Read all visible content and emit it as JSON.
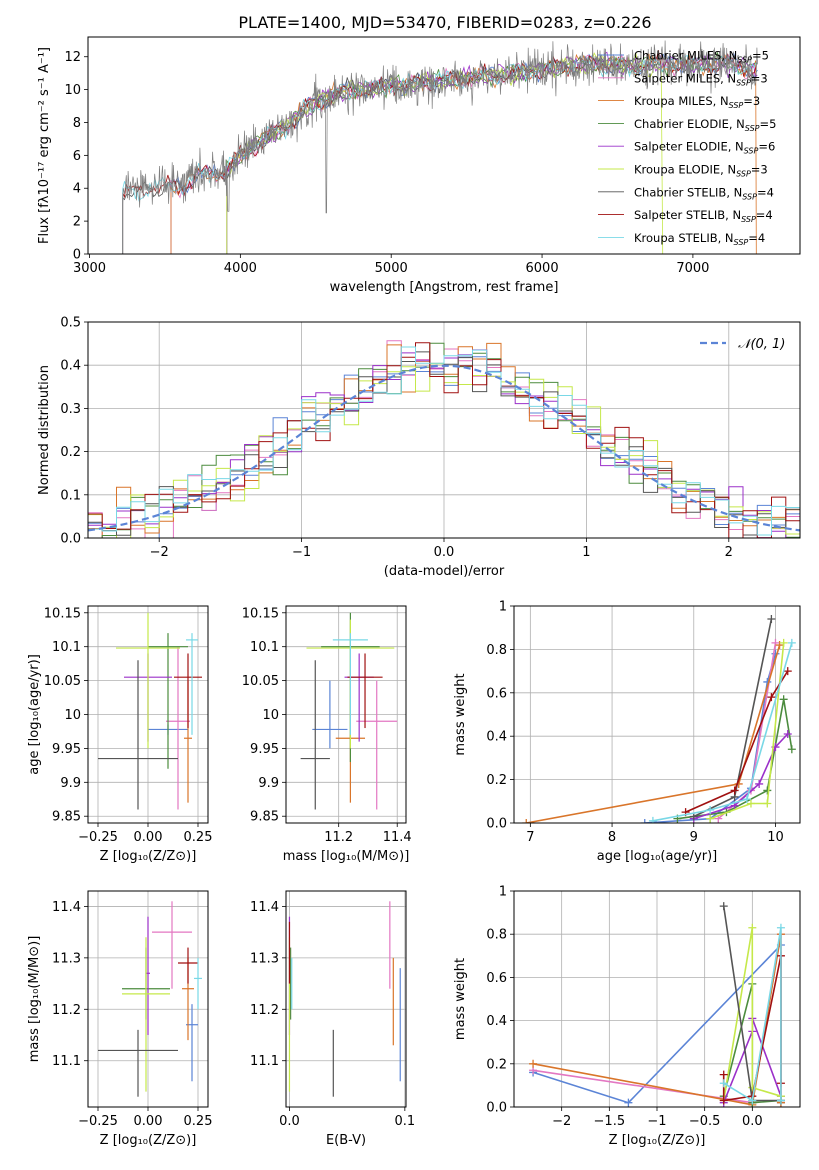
{
  "figure_title": "PLATE=1400, MJD=53470, FIBERID=0283, z=0.226",
  "colors": {
    "chabrier_miles": "#5b84d6",
    "salpeter_miles": "#e377c2",
    "kroupa_miles": "#d9752a",
    "chabrier_elodie": "#4c8c3e",
    "salpeter_elodie": "#9b30c9",
    "kroupa_elodie": "#c5e84a",
    "chabrier_stelib": "#555555",
    "salpeter_stelib": "#a01010",
    "kroupa_stelib": "#79d8e6",
    "normal_curve": "#5b84d6",
    "grid": "#b0b0b0"
  },
  "legend_entries": [
    {
      "name": "Chabrier MILES, N",
      "sub": "SSP",
      "tail": "=5",
      "color_key": "chabrier_miles"
    },
    {
      "name": "Salpeter MILES, N",
      "sub": "SSP",
      "tail": "=3",
      "color_key": "salpeter_miles"
    },
    {
      "name": "Kroupa MILES, N",
      "sub": "SSP",
      "tail": "=3",
      "color_key": "kroupa_miles"
    },
    {
      "name": "Chabrier ELODIE, N",
      "sub": "SSP",
      "tail": "=5",
      "color_key": "chabrier_elodie"
    },
    {
      "name": "Salpeter ELODIE, N",
      "sub": "SSP",
      "tail": "=6",
      "color_key": "salpeter_elodie"
    },
    {
      "name": "Kroupa ELODIE, N",
      "sub": "SSP",
      "tail": "=3",
      "color_key": "kroupa_elodie"
    },
    {
      "name": "Chabrier STELIB, N",
      "sub": "SSP",
      "tail": "=4",
      "color_key": "chabrier_stelib"
    },
    {
      "name": "Salpeter STELIB, N",
      "sub": "SSP",
      "tail": "=4",
      "color_key": "salpeter_stelib"
    },
    {
      "name": "Kroupa STELIB, N",
      "sub": "SSP",
      "tail": "=4",
      "color_key": "kroupa_stelib"
    }
  ],
  "chart_data": [
    {
      "id": "spectrum",
      "type": "line",
      "xlabel": "wavelength [Angstrom, rest frame]",
      "ylabel": "Flux [fλ10⁻¹⁷ erg cm⁻² s⁻¹ A⁻¹]",
      "xlim": [
        2990,
        7710
      ],
      "ylim": [
        0,
        13.2
      ],
      "xticks": [
        3000,
        4000,
        5000,
        6000,
        7000
      ],
      "yticks": [
        0,
        2,
        4,
        6,
        8,
        10,
        12
      ],
      "continuum": {
        "x": [
          3220,
          3300,
          3400,
          3500,
          3600,
          3700,
          3800,
          3900,
          4000,
          4100,
          4200,
          4300,
          4400,
          4500,
          4600,
          4700,
          4800,
          4900,
          5000,
          5100,
          5200,
          5400,
          5600,
          5800,
          6000,
          6200,
          6400,
          6600,
          6800,
          7000,
          7200,
          7400
        ],
        "y": [
          3.9,
          4.0,
          4.4,
          4.4,
          4.4,
          4.8,
          4.9,
          5.0,
          6.0,
          6.6,
          7.3,
          7.7,
          8.6,
          9.2,
          9.6,
          9.9,
          10.0,
          10.1,
          10.3,
          10.2,
          10.5,
          10.6,
          10.8,
          11.0,
          11.2,
          11.5,
          11.6,
          11.4,
          11.6,
          11.5,
          11.6,
          11.2
        ]
      },
      "model_drop_start": {
        "chabrier_miles": 3540,
        "salpeter_miles": 3540,
        "kroupa_miles": 3540,
        "chabrier_elodie": 3910,
        "salpeter_elodie": 3910,
        "kroupa_elodie": 3910,
        "chabrier_stelib": 3220,
        "salpeter_stelib": 3220,
        "kroupa_stelib": 3220
      },
      "model_drop_end": {
        "kroupa_elodie": 6800,
        "kroupa_miles": 7420
      }
    },
    {
      "id": "residuals",
      "type": "histogram",
      "xlabel": "(data-model)/error",
      "ylabel": "Normed distribution",
      "xlim": [
        -2.5,
        2.5
      ],
      "ylim": [
        0,
        0.5
      ],
      "xticks": [
        -2,
        -1,
        0,
        1,
        2
      ],
      "yticks": [
        0.0,
        0.1,
        0.2,
        0.3,
        0.4,
        0.5
      ],
      "bin_width": 0.1,
      "legend": "𝒩(0, 1)"
    },
    {
      "id": "age_vs_Z",
      "type": "errorbar",
      "xlabel": "Z [log₁₀(Z/Z⊙)]",
      "ylabel": "age  [log₁₀(age/yr)]",
      "xlim": [
        -0.3,
        0.3
      ],
      "ylim": [
        9.84,
        10.16
      ],
      "xticks": [
        -0.25,
        0.0,
        0.25
      ],
      "yticks": [
        9.85,
        9.9,
        9.95,
        10.0,
        10.05,
        10.1,
        10.15
      ],
      "points": [
        {
          "k": "chabrier_miles",
          "x": 0.1,
          "y": 9.978,
          "xe": 0.1,
          "yl": 9.97,
          "yh": 9.985
        },
        {
          "k": "salpeter_miles",
          "x": 0.15,
          "y": 9.99,
          "xe": 0.06,
          "yl": 9.86,
          "yh": 10.1
        },
        {
          "k": "kroupa_miles",
          "x": 0.2,
          "y": 9.965,
          "xe": 0.02,
          "yl": 9.87,
          "yh": 10.05
        },
        {
          "k": "chabrier_elodie",
          "x": 0.1,
          "y": 10.1,
          "xe": 0.1,
          "yl": 9.92,
          "yh": 10.12
        },
        {
          "k": "salpeter_elodie",
          "x": 0.0,
          "y": 10.055,
          "xe": 0.12,
          "yl": 9.96,
          "yh": 10.09
        },
        {
          "k": "kroupa_elodie",
          "x": 0.0,
          "y": 10.098,
          "xe": 0.16,
          "yl": 9.95,
          "yh": 10.15
        },
        {
          "k": "chabrier_stelib",
          "x": -0.05,
          "y": 9.935,
          "xe": 0.2,
          "yl": 9.86,
          "yh": 10.08
        },
        {
          "k": "salpeter_stelib",
          "x": 0.2,
          "y": 10.055,
          "xe": 0.07,
          "yl": 9.98,
          "yh": 10.09
        },
        {
          "k": "kroupa_stelib",
          "x": 0.22,
          "y": 10.11,
          "xe": 0.03,
          "yl": 9.97,
          "yh": 10.12
        }
      ]
    },
    {
      "id": "age_vs_mass",
      "type": "errorbar",
      "xlabel": "mass [log₁₀(M/M⊙)]",
      "ylabel": "",
      "xlim": [
        11.02,
        11.43
      ],
      "ylim": [
        9.84,
        10.16
      ],
      "xticks": [
        11.2,
        11.4
      ],
      "yticks": [
        9.85,
        9.9,
        9.95,
        10.0,
        10.05,
        10.1,
        10.15
      ],
      "points": [
        {
          "k": "chabrier_miles",
          "x": 11.17,
          "y": 9.978,
          "xe": 0.06,
          "yl": 9.95,
          "yh": 10.05
        },
        {
          "k": "salpeter_miles",
          "x": 11.33,
          "y": 9.99,
          "xe": 0.07,
          "yl": 9.86,
          "yh": 10.05
        },
        {
          "k": "kroupa_miles",
          "x": 11.24,
          "y": 9.965,
          "xe": 0.05,
          "yl": 9.87,
          "yh": 10.05
        },
        {
          "k": "chabrier_elodie",
          "x": 11.24,
          "y": 10.1,
          "xe": 0.1,
          "yl": 9.93,
          "yh": 10.15
        },
        {
          "k": "salpeter_elodie",
          "x": 11.27,
          "y": 10.055,
          "xe": 0.05,
          "yl": 9.96,
          "yh": 10.09
        },
        {
          "k": "kroupa_elodie",
          "x": 11.24,
          "y": 10.098,
          "xe": 0.15,
          "yl": 9.95,
          "yh": 10.14
        },
        {
          "k": "chabrier_stelib",
          "x": 11.12,
          "y": 9.935,
          "xe": 0.05,
          "yl": 9.86,
          "yh": 10.08
        },
        {
          "k": "salpeter_stelib",
          "x": 11.29,
          "y": 10.055,
          "xe": 0.06,
          "yl": 9.98,
          "yh": 10.09
        },
        {
          "k": "kroupa_stelib",
          "x": 11.24,
          "y": 10.11,
          "xe": 0.06,
          "yl": 9.97,
          "yh": 10.12
        }
      ]
    },
    {
      "id": "massweight_vs_age",
      "type": "line",
      "xlabel": "age  [log₁₀(age/yr)]",
      "ylabel": "mass weight",
      "xlim": [
        6.8,
        10.3
      ],
      "ylim": [
        0,
        1.0
      ],
      "xticks": [
        7,
        8,
        9,
        10
      ],
      "yticks": [
        0.0,
        0.2,
        0.4,
        0.6,
        0.8,
        1.0
      ],
      "series": [
        {
          "k": "chabrier_miles",
          "x": [
            8.4,
            9.2,
            9.7,
            9.9,
            10.0
          ],
          "y": [
            0.0,
            0.02,
            0.16,
            0.65,
            0.78
          ]
        },
        {
          "k": "salpeter_miles",
          "x": [
            9.3,
            9.7,
            10.0
          ],
          "y": [
            0.02,
            0.15,
            0.83
          ]
        },
        {
          "k": "kroupa_miles",
          "x": [
            6.95,
            9.55,
            10.05
          ],
          "y": [
            0.0,
            0.18,
            0.82
          ]
        },
        {
          "k": "chabrier_elodie",
          "x": [
            8.8,
            9.4,
            9.9,
            10.1,
            10.2
          ],
          "y": [
            0.02,
            0.05,
            0.15,
            0.57,
            0.34
          ]
        },
        {
          "k": "salpeter_elodie",
          "x": [
            9.0,
            9.5,
            9.8,
            10.0,
            10.15
          ],
          "y": [
            0.02,
            0.08,
            0.18,
            0.35,
            0.41
          ]
        },
        {
          "k": "kroupa_elodie",
          "x": [
            9.2,
            9.7,
            9.9,
            10.1
          ],
          "y": [
            0.02,
            0.09,
            0.09,
            0.83
          ]
        },
        {
          "k": "chabrier_stelib",
          "x": [
            9.0,
            9.5,
            9.95
          ],
          "y": [
            0.03,
            0.12,
            0.94
          ]
        },
        {
          "k": "salpeter_stelib",
          "x": [
            8.9,
            9.5,
            9.95,
            10.15
          ],
          "y": [
            0.05,
            0.15,
            0.58,
            0.7
          ]
        },
        {
          "k": "kroupa_stelib",
          "x": [
            8.5,
            9.2,
            9.65,
            10.2
          ],
          "y": [
            0.01,
            0.06,
            0.11,
            0.83
          ]
        }
      ]
    },
    {
      "id": "mass_vs_Z",
      "type": "errorbar",
      "xlabel": "Z [log₁₀(Z/Z⊙)]",
      "ylabel": "mass [log₁₀(M/M⊙)]",
      "xlim": [
        -0.3,
        0.3
      ],
      "ylim": [
        11.01,
        11.43
      ],
      "xticks": [
        -0.25,
        0.0,
        0.25
      ],
      "yticks": [
        11.1,
        11.2,
        11.3,
        11.4
      ],
      "points": [
        {
          "k": "chabrier_miles",
          "x": 0.22,
          "y": 11.17,
          "xe": 0.03,
          "yl": 11.06,
          "yh": 11.21
        },
        {
          "k": "salpeter_miles",
          "x": 0.12,
          "y": 11.35,
          "xe": 0.1,
          "yl": 11.24,
          "yh": 11.41
        },
        {
          "k": "kroupa_miles",
          "x": 0.2,
          "y": 11.24,
          "xe": 0.03,
          "yl": 11.14,
          "yh": 11.3
        },
        {
          "k": "chabrier_elodie",
          "x": -0.01,
          "y": 11.24,
          "xe": 0.12,
          "yl": 11.18,
          "yh": 11.32
        },
        {
          "k": "salpeter_elodie",
          "x": 0.0,
          "y": 11.27,
          "xe": 0.01,
          "yl": 11.15,
          "yh": 11.38
        },
        {
          "k": "kroupa_elodie",
          "x": -0.01,
          "y": 11.23,
          "xe": 0.12,
          "yl": 11.04,
          "yh": 11.34
        },
        {
          "k": "chabrier_stelib",
          "x": -0.05,
          "y": 11.12,
          "xe": 0.2,
          "yl": 11.03,
          "yh": 11.16
        },
        {
          "k": "salpeter_stelib",
          "x": 0.2,
          "y": 11.29,
          "xe": 0.05,
          "yl": 11.25,
          "yh": 11.32
        },
        {
          "k": "kroupa_stelib",
          "x": 0.25,
          "y": 11.26,
          "xe": 0.02,
          "yl": 11.2,
          "yh": 11.3
        }
      ]
    },
    {
      "id": "mass_vs_ebv",
      "type": "errorbar",
      "xlabel": "E(B-V)",
      "ylabel": "",
      "xlim": [
        -0.003,
        0.101
      ],
      "ylim": [
        11.01,
        11.43
      ],
      "xticks": [
        0.0,
        0.1
      ],
      "yticks": [
        11.1,
        11.2,
        11.3,
        11.4
      ],
      "points": [
        {
          "k": "chabrier_miles",
          "x": 0.096,
          "y": 11.17,
          "xe": 0.0,
          "yl": 11.06,
          "yh": 11.28
        },
        {
          "k": "salpeter_miles",
          "x": 0.087,
          "y": 11.35,
          "xe": 0.0,
          "yl": 11.24,
          "yh": 11.41
        },
        {
          "k": "kroupa_miles",
          "x": 0.09,
          "y": 11.24,
          "xe": 0.0,
          "yl": 11.13,
          "yh": 11.3
        },
        {
          "k": "chabrier_elodie",
          "x": 0.001,
          "y": 11.24,
          "xe": 0.0,
          "yl": 11.18,
          "yh": 11.32
        },
        {
          "k": "salpeter_elodie",
          "x": 0.0,
          "y": 11.27,
          "xe": 0.0,
          "yl": 11.15,
          "yh": 11.38
        },
        {
          "k": "kroupa_elodie",
          "x": 0.0,
          "y": 11.23,
          "xe": 0.0,
          "yl": 11.04,
          "yh": 11.34
        },
        {
          "k": "chabrier_stelib",
          "x": 0.038,
          "y": 11.12,
          "xe": 0.0,
          "yl": 11.03,
          "yh": 11.16
        },
        {
          "k": "salpeter_stelib",
          "x": 0.0,
          "y": 11.29,
          "xe": 0.0,
          "yl": 11.25,
          "yh": 11.37
        },
        {
          "k": "kroupa_stelib",
          "x": 0.002,
          "y": 11.26,
          "xe": 0.0,
          "yl": 11.2,
          "yh": 11.3
        }
      ]
    },
    {
      "id": "massweight_vs_Z",
      "type": "line",
      "xlabel": "Z [log₁₀(Z/Z⊙)]",
      "ylabel": "mass weight",
      "xlim": [
        -2.5,
        0.5
      ],
      "ylim": [
        0,
        1.0
      ],
      "xticks": [
        -2.0,
        -1.5,
        -1.0,
        -0.5,
        0.0
      ],
      "yticks": [
        0.0,
        0.2,
        0.4,
        0.6,
        0.8,
        1.0
      ],
      "series": [
        {
          "k": "chabrier_miles",
          "x": [
            -2.3,
            -1.3,
            0.3,
            0.3
          ],
          "y": [
            0.16,
            0.02,
            0.75,
            0.02
          ]
        },
        {
          "k": "salpeter_miles",
          "x": [
            -2.3,
            0.0,
            0.3,
            0.3
          ],
          "y": [
            0.17,
            0.02,
            0.8,
            0.03
          ]
        },
        {
          "k": "kroupa_miles",
          "x": [
            -2.3,
            0.0,
            0.3,
            0.3
          ],
          "y": [
            0.2,
            0.01,
            0.8,
            0.02
          ]
        },
        {
          "k": "chabrier_elodie",
          "x": [
            -0.3,
            0.0,
            0.0,
            0.3
          ],
          "y": [
            0.05,
            0.57,
            0.02,
            0.03
          ]
        },
        {
          "k": "salpeter_elodie",
          "x": [
            -0.3,
            0.0,
            0.0,
            0.3
          ],
          "y": [
            0.02,
            0.35,
            0.41,
            0.05
          ]
        },
        {
          "k": "kroupa_elodie",
          "x": [
            -0.3,
            0.0,
            0.0,
            0.3
          ],
          "y": [
            0.03,
            0.83,
            0.09,
            0.05
          ]
        },
        {
          "k": "chabrier_stelib",
          "x": [
            -0.3,
            0.0,
            0.3
          ],
          "y": [
            0.93,
            0.03,
            0.03
          ]
        },
        {
          "k": "salpeter_stelib",
          "x": [
            -0.3,
            -0.3,
            0.0,
            0.3,
            0.3
          ],
          "y": [
            0.15,
            0.03,
            0.05,
            0.7,
            0.11
          ]
        },
        {
          "k": "kroupa_stelib",
          "x": [
            -0.3,
            0.0,
            0.3,
            0.3
          ],
          "y": [
            0.11,
            0.03,
            0.83,
            0.03
          ]
        }
      ]
    }
  ]
}
